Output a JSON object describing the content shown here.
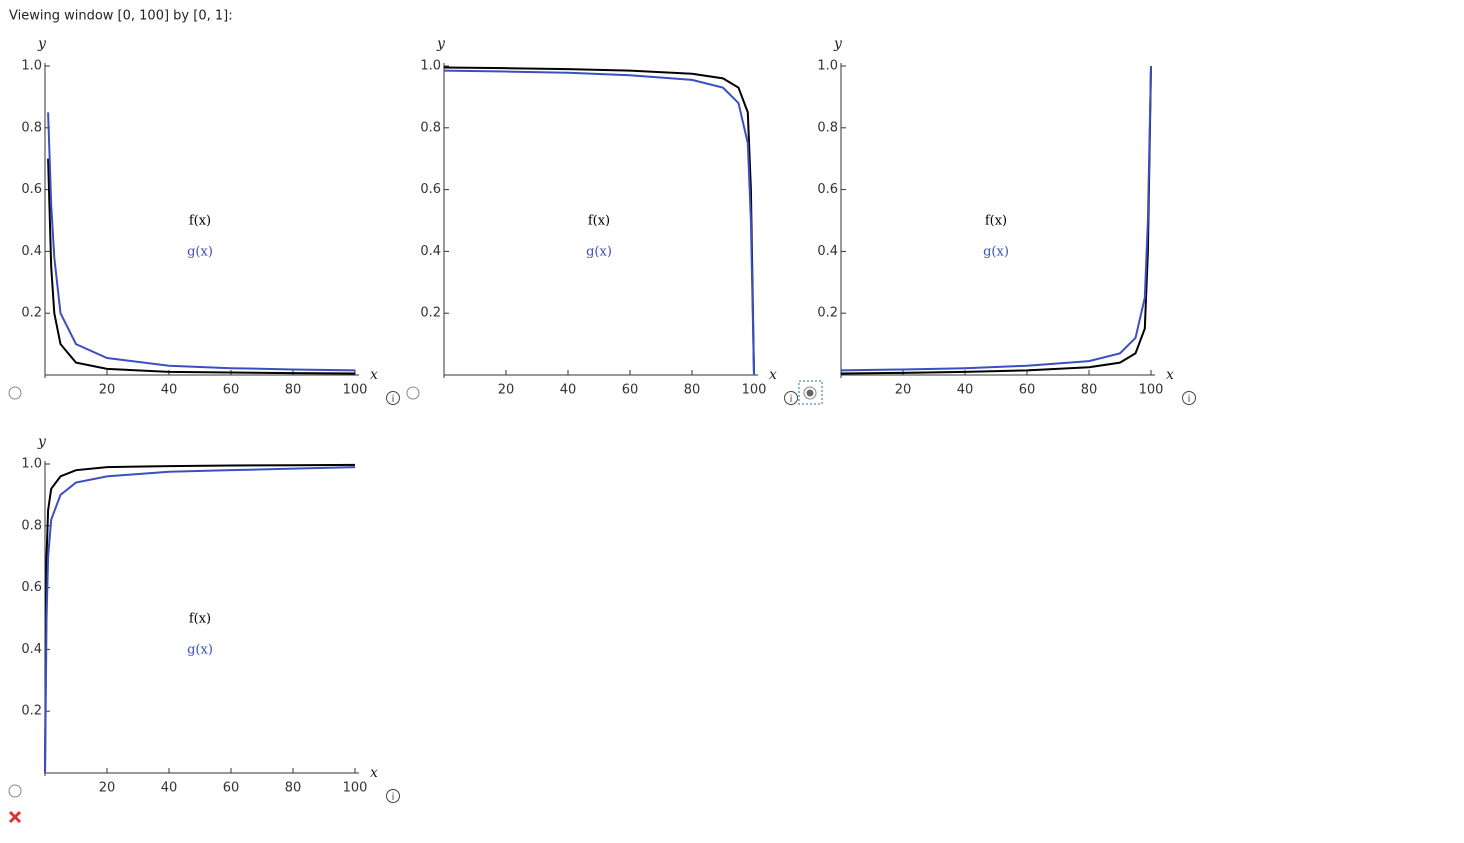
{
  "header": {
    "title": "Viewing window [0, 100] by [0, 1]:"
  },
  "chart_data": [
    {
      "type": "line",
      "x_label": "x",
      "y_label": "y",
      "x": [
        1,
        2,
        3,
        5,
        10,
        20,
        40,
        60,
        80,
        100
      ],
      "series": [
        {
          "name": "f(x)",
          "color": "#000000",
          "values": [
            0.7,
            0.35,
            0.2,
            0.1,
            0.04,
            0.02,
            0.01,
            0.008,
            0.006,
            0.005
          ]
        },
        {
          "name": "g(x)",
          "color": "#3a4fc0",
          "values": [
            0.85,
            0.55,
            0.38,
            0.2,
            0.1,
            0.055,
            0.03,
            0.022,
            0.018,
            0.015
          ]
        }
      ],
      "xlim": [
        0,
        100
      ],
      "ylim": [
        0,
        1
      ],
      "xticks": [
        20,
        40,
        60,
        80,
        100
      ],
      "yticks": [
        0.2,
        0.4,
        0.6,
        0.8,
        {
          "value": 1,
          "label": "1.0"
        }
      ]
    },
    {
      "type": "line",
      "x_label": "x",
      "y_label": "y",
      "x": [
        0,
        20,
        40,
        60,
        80,
        90,
        95,
        98,
        99,
        99.5,
        100
      ],
      "series": [
        {
          "name": "f(x)",
          "color": "#000000",
          "values": [
            0.995,
            0.993,
            0.99,
            0.985,
            0.975,
            0.96,
            0.93,
            0.85,
            0.6,
            0.3,
            0
          ]
        },
        {
          "name": "g(x)",
          "color": "#3a4fc0",
          "values": [
            0.985,
            0.982,
            0.978,
            0.97,
            0.955,
            0.93,
            0.88,
            0.75,
            0.5,
            0.25,
            0
          ]
        }
      ],
      "xlim": [
        0,
        100
      ],
      "ylim": [
        0,
        1
      ],
      "xticks": [
        20,
        40,
        60,
        80,
        100
      ],
      "yticks": [
        0.2,
        0.4,
        0.6,
        0.8,
        {
          "value": 1,
          "label": "1.0"
        }
      ]
    },
    {
      "type": "line",
      "x_label": "x",
      "y_label": "y",
      "x": [
        0,
        20,
        40,
        60,
        80,
        90,
        95,
        98,
        99,
        99.5,
        100
      ],
      "series": [
        {
          "name": "f(x)",
          "color": "#000000",
          "values": [
            0.005,
            0.007,
            0.01,
            0.015,
            0.025,
            0.04,
            0.07,
            0.15,
            0.4,
            0.7,
            1
          ]
        },
        {
          "name": "g(x)",
          "color": "#3a4fc0",
          "values": [
            0.015,
            0.018,
            0.022,
            0.03,
            0.045,
            0.07,
            0.12,
            0.25,
            0.5,
            0.75,
            1
          ]
        }
      ],
      "xlim": [
        0,
        100
      ],
      "ylim": [
        0,
        1
      ],
      "xticks": [
        20,
        40,
        60,
        80,
        100
      ],
      "yticks": [
        0.2,
        0.4,
        0.6,
        0.8,
        {
          "value": 1,
          "label": "1.0"
        }
      ]
    },
    {
      "type": "line",
      "x_label": "x",
      "y_label": "y",
      "x": [
        0,
        0.5,
        1,
        2,
        5,
        10,
        20,
        40,
        60,
        80,
        100
      ],
      "series": [
        {
          "name": "f(x)",
          "color": "#000000",
          "values": [
            0,
            0.7,
            0.85,
            0.92,
            0.96,
            0.98,
            0.99,
            0.993,
            0.995,
            0.996,
            0.997
          ]
        },
        {
          "name": "g(x)",
          "color": "#3a4fc0",
          "values": [
            0,
            0.5,
            0.7,
            0.82,
            0.9,
            0.94,
            0.96,
            0.975,
            0.98,
            0.985,
            0.99
          ]
        }
      ],
      "xlim": [
        0,
        100
      ],
      "ylim": [
        0,
        1
      ],
      "xticks": [
        20,
        40,
        60,
        80,
        100
      ],
      "yticks": [
        0.2,
        0.4,
        0.6,
        0.8,
        {
          "value": 1,
          "label": "1.0"
        }
      ]
    }
  ]
}
